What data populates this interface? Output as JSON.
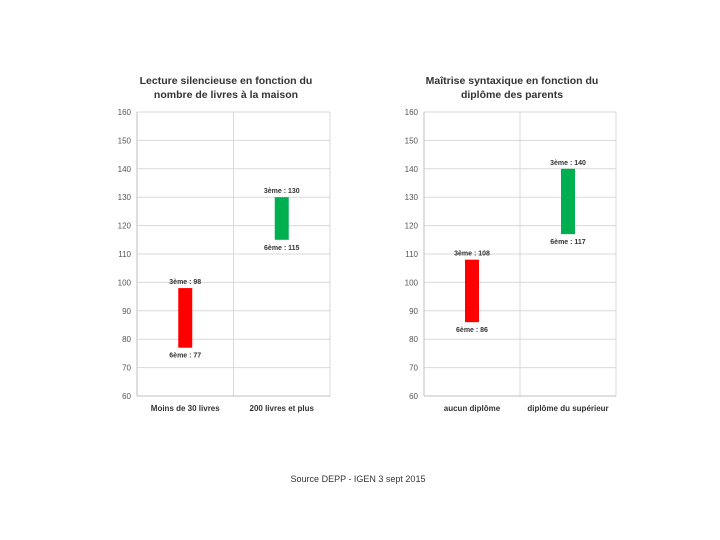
{
  "chart_data": [
    {
      "type": "bar",
      "title": [
        "Lecture silencieuse en fonction du",
        "nombre de livres à la maison"
      ],
      "ylim": [
        60,
        160
      ],
      "yticks": [
        60,
        70,
        80,
        90,
        100,
        110,
        120,
        130,
        140,
        150,
        160
      ],
      "grid": true,
      "categories": [
        "Moins de 30 livres",
        "200 livres et plus"
      ],
      "ranges": [
        {
          "low": 77,
          "high": 98,
          "low_label": "6ème : 77",
          "high_label": "3ème : 98",
          "color": "#ff0000"
        },
        {
          "low": 115,
          "high": 130,
          "low_label": "6ème : 115",
          "high_label": "3ème : 130",
          "color": "#00b050"
        }
      ]
    },
    {
      "type": "bar",
      "title": [
        "Maîtrise syntaxique en fonction du",
        "diplôme des parents"
      ],
      "ylim": [
        60,
        160
      ],
      "yticks": [
        60,
        70,
        80,
        90,
        100,
        110,
        120,
        130,
        140,
        150,
        160
      ],
      "grid": true,
      "categories": [
        "aucun diplôme",
        "diplôme du supérieur"
      ],
      "ranges": [
        {
          "low": 86,
          "high": 108,
          "low_label": "6ème : 86",
          "high_label": "3ème : 108",
          "color": "#ff0000"
        },
        {
          "low": 117,
          "high": 140,
          "low_label": "6ème : 117",
          "high_label": "3ème : 140",
          "color": "#00b050"
        }
      ]
    }
  ],
  "source": "Source DEPP - IGEN 3 sept 2015"
}
